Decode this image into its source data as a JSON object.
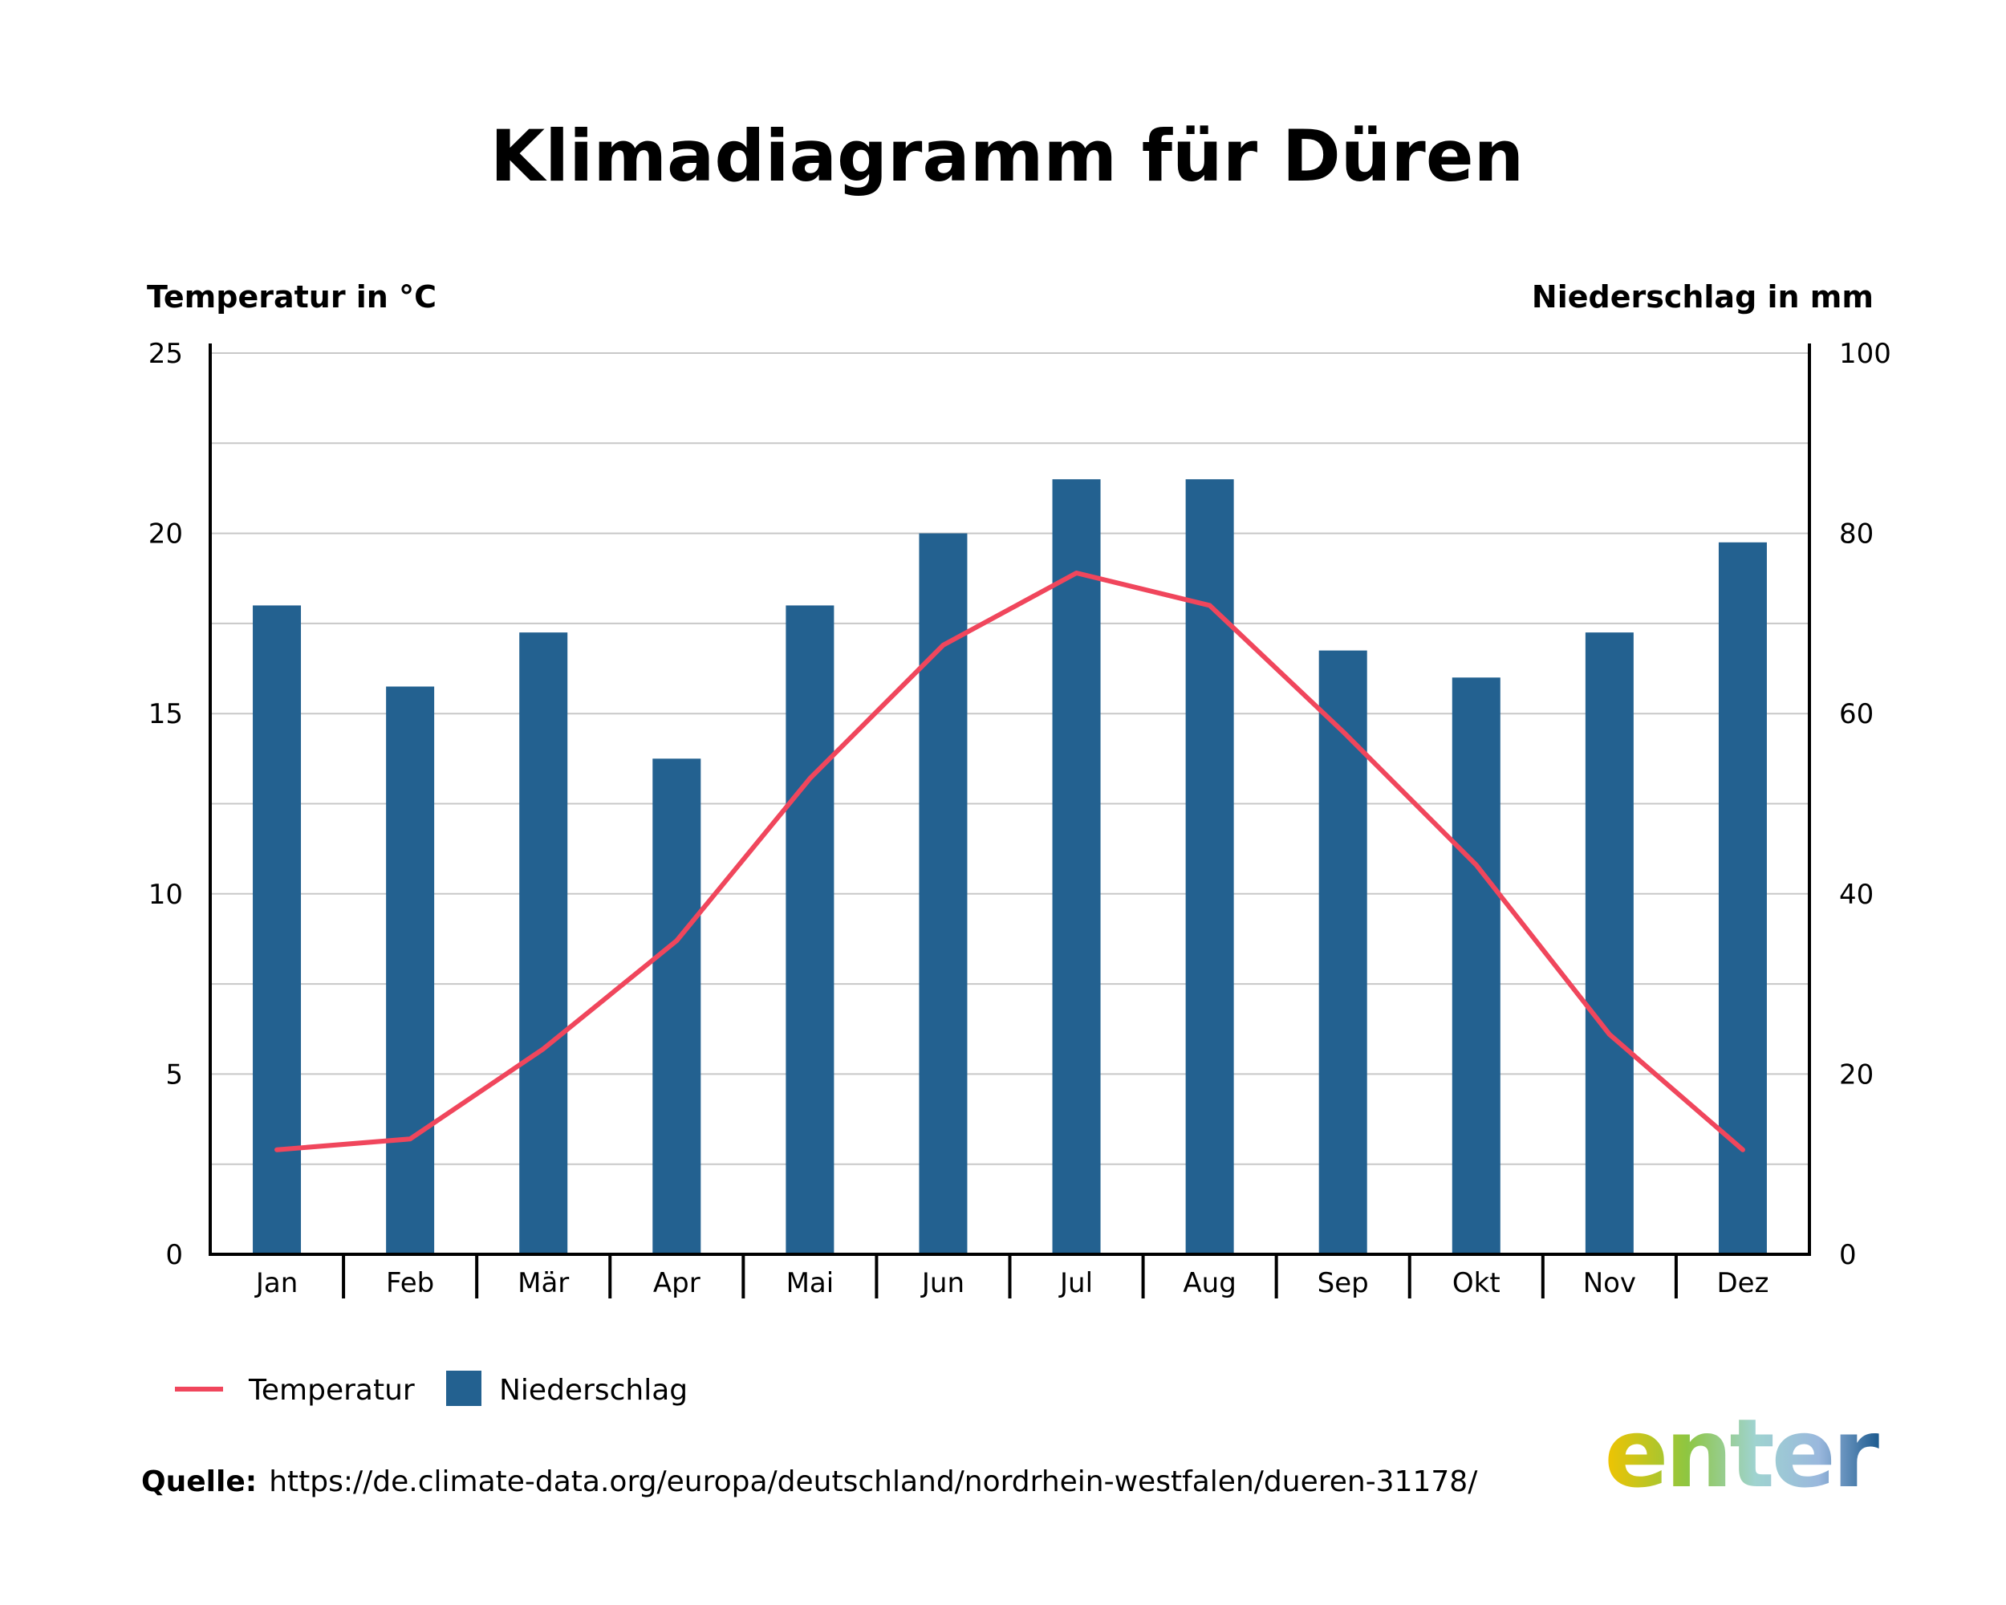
{
  "title": "Klimadiagramm für Düren",
  "left_axis_title": "Temperatur in °C",
  "right_axis_title": "Niederschlag in mm",
  "legend": {
    "line_label": "Temperatur",
    "bar_label": "Niederschlag"
  },
  "source": {
    "label": "Quelle:",
    "url": "https://de.climate-data.org/europa/deutschland/nordrhein-westfalen/dueren-31178/"
  },
  "logo": "enter",
  "colors": {
    "bar": "#236190",
    "line": "#f0465c",
    "grid": "#c8c8c8",
    "axis": "#000000",
    "logo_gradient": [
      "#f2c400",
      "#8ec641",
      "#9fd3d0",
      "#9ab8dd",
      "#1d5b8f"
    ]
  },
  "chart_data": {
    "type": "bar+line",
    "categories": [
      "Jan",
      "Feb",
      "Mär",
      "Apr",
      "Mai",
      "Jun",
      "Jul",
      "Aug",
      "Sep",
      "Okt",
      "Nov",
      "Dez"
    ],
    "series": [
      {
        "name": "Niederschlag",
        "type": "bar",
        "axis": "right",
        "values": [
          72,
          63,
          69,
          55,
          72,
          80,
          86,
          86,
          67,
          64,
          69,
          79
        ]
      },
      {
        "name": "Temperatur",
        "type": "line",
        "axis": "left",
        "values": [
          2.9,
          3.2,
          5.7,
          8.7,
          13.2,
          16.9,
          18.9,
          18.0,
          14.5,
          10.8,
          6.1,
          2.9
        ]
      }
    ],
    "left_axis": {
      "label": "Temperatur in °C",
      "ylim": [
        0,
        25
      ],
      "ticks": [
        0,
        5,
        10,
        15,
        20,
        25
      ]
    },
    "right_axis": {
      "label": "Niederschlag in mm",
      "ylim": [
        0,
        100
      ],
      "ticks": [
        0,
        20,
        40,
        60,
        80,
        100
      ]
    },
    "grid": true,
    "legend_position": "bottom-left"
  }
}
